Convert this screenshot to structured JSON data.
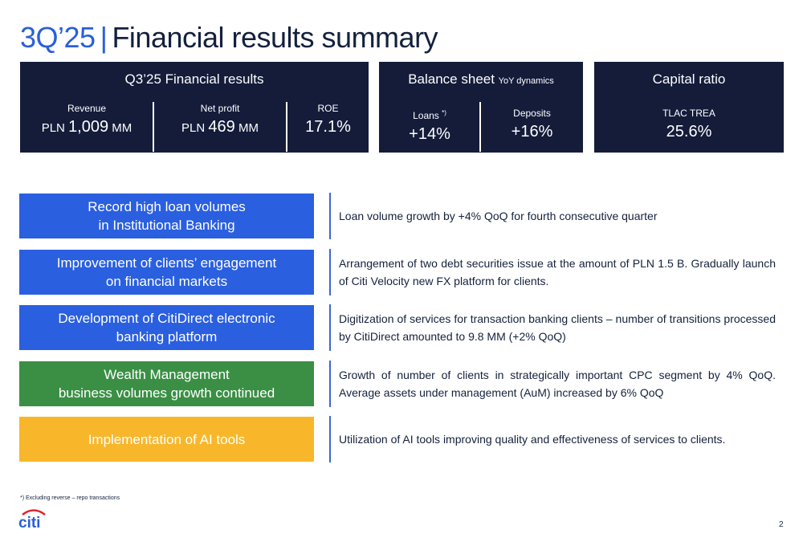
{
  "title": {
    "quarter": "3Q’25",
    "separator": "|",
    "text": "Financial results summary"
  },
  "financial_panel": {
    "title": "Q3’25 Financial results",
    "revenue": {
      "label": "Revenue",
      "currency": "PLN ",
      "amount": "1,009",
      "unit": " MM"
    },
    "net_profit": {
      "label": "Net profit",
      "currency": "PLN ",
      "amount": "469",
      "unit": " MM"
    },
    "roe": {
      "label": "ROE",
      "value": "17.1%"
    }
  },
  "balance_panel": {
    "title": "Balance sheet ",
    "subtitle": "YoY dynamics",
    "loans": {
      "label": "Loans ",
      "marker": "*)",
      "value": "+14%"
    },
    "deposits": {
      "label": "Deposits",
      "value": "+16%"
    }
  },
  "capital_panel": {
    "title": "Capital ratio",
    "tlac": {
      "label": "TLAC TREA",
      "value": "25.6%"
    }
  },
  "highlights": [
    {
      "heading": "Record high loan volumes\nin Institutional Banking",
      "color": "blue",
      "description": "Loan volume growth by +4% QoQ for fourth consecutive quarter"
    },
    {
      "heading": "Improvement of clients’ engagement\non financial markets",
      "color": "blue",
      "description": "Arrangement of two debt securities issue at the amount of PLN 1.5 B. Gradually launch of Citi Velocity new FX platform for clients."
    },
    {
      "heading": "Development of CitiDirect electronic\nbanking platform",
      "color": "blue",
      "description": "Digitization of services for transaction banking clients – number of transitions processed by CitiDirect amounted to  9.8 MM (+2% QoQ)"
    },
    {
      "heading": "Wealth Management\nbusiness volumes growth continued",
      "color": "green",
      "description": "Growth of number of clients in strategically important CPC segment by 4% QoQ.  Average assets under management (AuM) increased by 6% QoQ"
    },
    {
      "heading": "Implementation of AI tools",
      "color": "yellow",
      "description": "Utilization of AI tools improving quality and effectiveness of services to clients."
    }
  ],
  "footnote": "*) Excluding reverse – repo transactions",
  "logo": {
    "text": "citi",
    "icon": "citi-logo-arc"
  },
  "page_number": "2",
  "colors": {
    "navy": "#141c3a",
    "blue": "#2a5fe0",
    "green": "#3a8f45",
    "yellow": "#f8b72a",
    "accent": "#2b5fd9"
  }
}
